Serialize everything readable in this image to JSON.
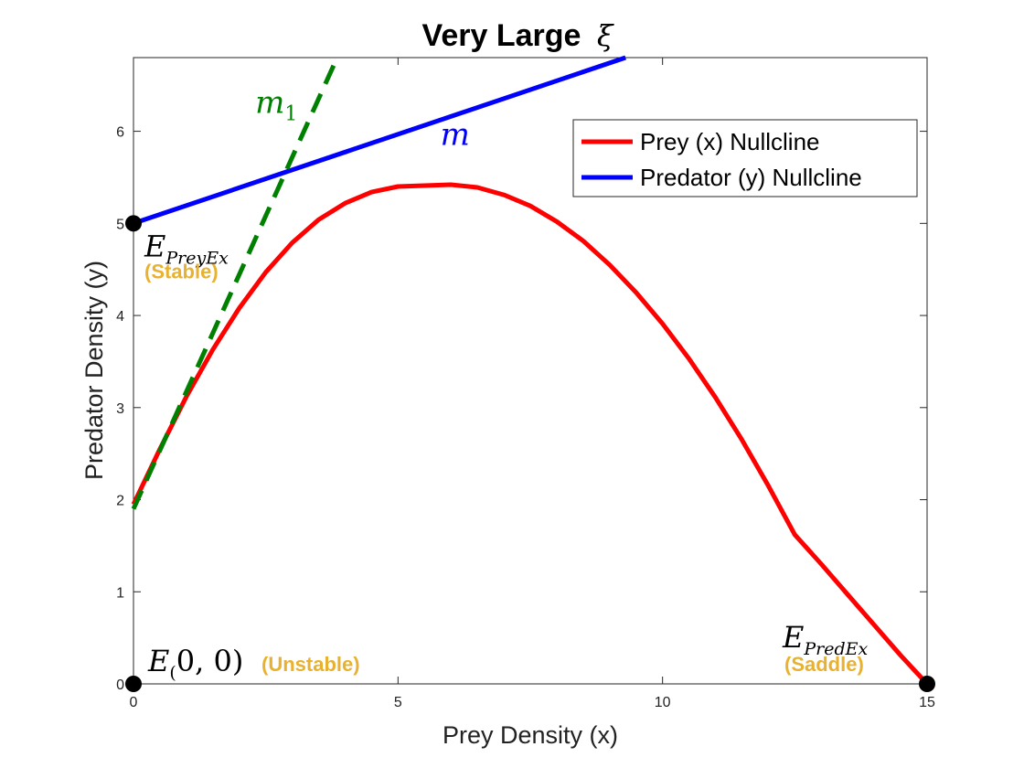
{
  "colors": {
    "prey": "#ff0000",
    "predator": "#0000ff",
    "m1": "#008000",
    "stability": "#e8b130",
    "point": "#000000"
  },
  "chart_data": {
    "type": "line",
    "title": "Very Large",
    "title_symbol": "ξ",
    "xlabel": "Prey Density (x)",
    "ylabel": "Predator Density (y)",
    "xlim": [
      0,
      15
    ],
    "ylim": [
      0,
      6.8
    ],
    "xticks": [
      0,
      5,
      10,
      15
    ],
    "yticks": [
      0,
      1,
      2,
      3,
      4,
      5,
      6
    ],
    "legend_position": "top-right",
    "series": [
      {
        "name": "Prey (x) Nullcline",
        "style": "solid",
        "x": [
          0,
          0.5,
          1,
          1.5,
          2,
          2.5,
          3,
          3.5,
          4,
          4.5,
          5,
          5.5,
          6,
          6.5,
          7,
          7.5,
          8,
          8.5,
          9,
          9.5,
          10,
          10.5,
          11,
          11.5,
          12,
          12.5,
          13,
          13.5,
          14,
          14.5,
          15
        ],
        "y": [
          1.95,
          2.55,
          3.12,
          3.63,
          4.08,
          4.47,
          4.79,
          5.04,
          5.22,
          5.34,
          5.4,
          5.41,
          5.42,
          5.39,
          5.31,
          5.19,
          5.02,
          4.81,
          4.55,
          4.25,
          3.91,
          3.53,
          3.11,
          2.65,
          2.15,
          1.62,
          1.3,
          0.97,
          0.64,
          0.31,
          0.0
        ]
      },
      {
        "name": "Predator (y) Nullcline",
        "style": "solid",
        "x": [
          0,
          9.3
        ],
        "y": [
          5.0,
          6.8
        ]
      },
      {
        "name": "m1",
        "style": "dashed",
        "x": [
          0,
          3.85
        ],
        "y": [
          1.9,
          6.8
        ]
      }
    ],
    "legend": [
      "Prey (x) Nullcline",
      "Predator (y) Nullcline"
    ],
    "line_labels": [
      {
        "series": "m1",
        "base": "m",
        "sub": "1",
        "x": 2.3,
        "y": 6.2
      },
      {
        "series": "m",
        "base": "m",
        "sub": "",
        "x": 5.8,
        "y": 5.85
      }
    ],
    "equilibria": [
      {
        "name": "E_PreyEx",
        "base": "E",
        "sub": "PreyEx",
        "tail": "",
        "stability": "(Stable)",
        "x": 0,
        "y": 5
      },
      {
        "name": "E_(0,0)",
        "base": "E",
        "sub": "(",
        "tail": "0, 0)",
        "stability": "(Unstable)",
        "x": 0,
        "y": 0
      },
      {
        "name": "E_PredEx",
        "base": "E",
        "sub": "PredEx",
        "tail": "",
        "stability": "(Saddle)",
        "x": 15,
        "y": 0
      }
    ]
  }
}
